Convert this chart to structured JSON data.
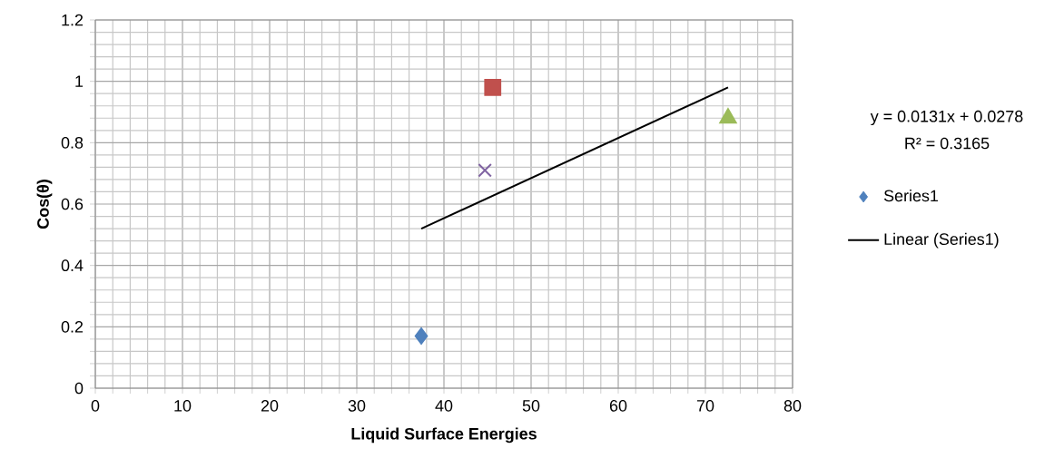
{
  "chart_data": {
    "type": "scatter",
    "xlabel": "Liquid Surface Energies",
    "ylabel": "Cos(θ)",
    "xlim": [
      0,
      80
    ],
    "ylim": [
      0,
      1.2
    ],
    "xticks": [
      0,
      10,
      20,
      30,
      40,
      50,
      60,
      70,
      80
    ],
    "yticks": [
      0,
      0.2,
      0.4,
      0.6,
      0.8,
      1,
      1.2
    ],
    "grid": true,
    "legend": "right",
    "annotations": [
      "y = 0.0131x + 0.0278",
      "R² = 0.3165"
    ],
    "series": [
      {
        "name": "Series1",
        "x": [
          37.4
        ],
        "values": [
          0.17
        ],
        "color": "#4f81bd",
        "marker": "diamond"
      },
      {
        "x": [
          45.6
        ],
        "values": [
          0.98
        ],
        "color": "#c0504d",
        "marker": "square"
      },
      {
        "x": [
          44.7
        ],
        "values": [
          0.71
        ],
        "color": "#8064a2",
        "marker": "cross"
      },
      {
        "x": [
          72.6
        ],
        "values": [
          0.88
        ],
        "color": "#9bbb59",
        "marker": "triangle"
      },
      {
        "name": "Linear (Series1)",
        "type": "line",
        "x": [
          37.4,
          72.6
        ],
        "values": [
          0.52,
          0.98
        ],
        "color": "#000000",
        "line_style": "solid",
        "marker": "none"
      }
    ]
  }
}
